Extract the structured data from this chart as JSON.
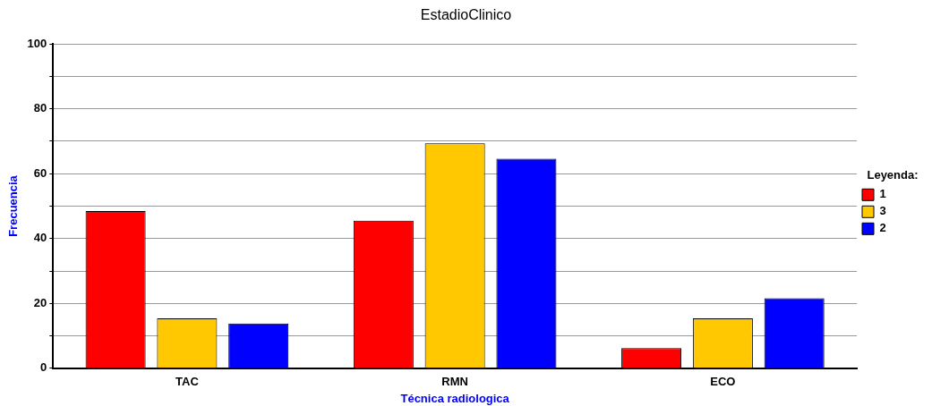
{
  "chart_data": {
    "type": "bar",
    "title": "EstadioClinico",
    "xlabel": "Técnica radiologica",
    "ylabel": "Frecuencia",
    "legend_title": "Leyenda:",
    "categories": [
      "TAC",
      "RMN",
      "ECO"
    ],
    "series": [
      {
        "name": "1",
        "color": "#ff0000",
        "values": [
          48.5,
          45.5,
          6.2
        ]
      },
      {
        "name": "3",
        "color": "#ffc800",
        "values": [
          15.4,
          69.4,
          15.4
        ]
      },
      {
        "name": "2",
        "color": "#0000ff",
        "values": [
          13.8,
          64.6,
          21.6
        ]
      }
    ],
    "ylim": [
      0,
      100
    ],
    "yticks": [
      0,
      {
        "value": 10,
        "label": null
      },
      20,
      {
        "value": 30,
        "label": null
      },
      40,
      {
        "value": 50,
        "label": null
      },
      60,
      {
        "value": 70,
        "label": null
      },
      80,
      {
        "value": 90,
        "label": null
      },
      100
    ],
    "grid": "y",
    "legend": "right"
  }
}
